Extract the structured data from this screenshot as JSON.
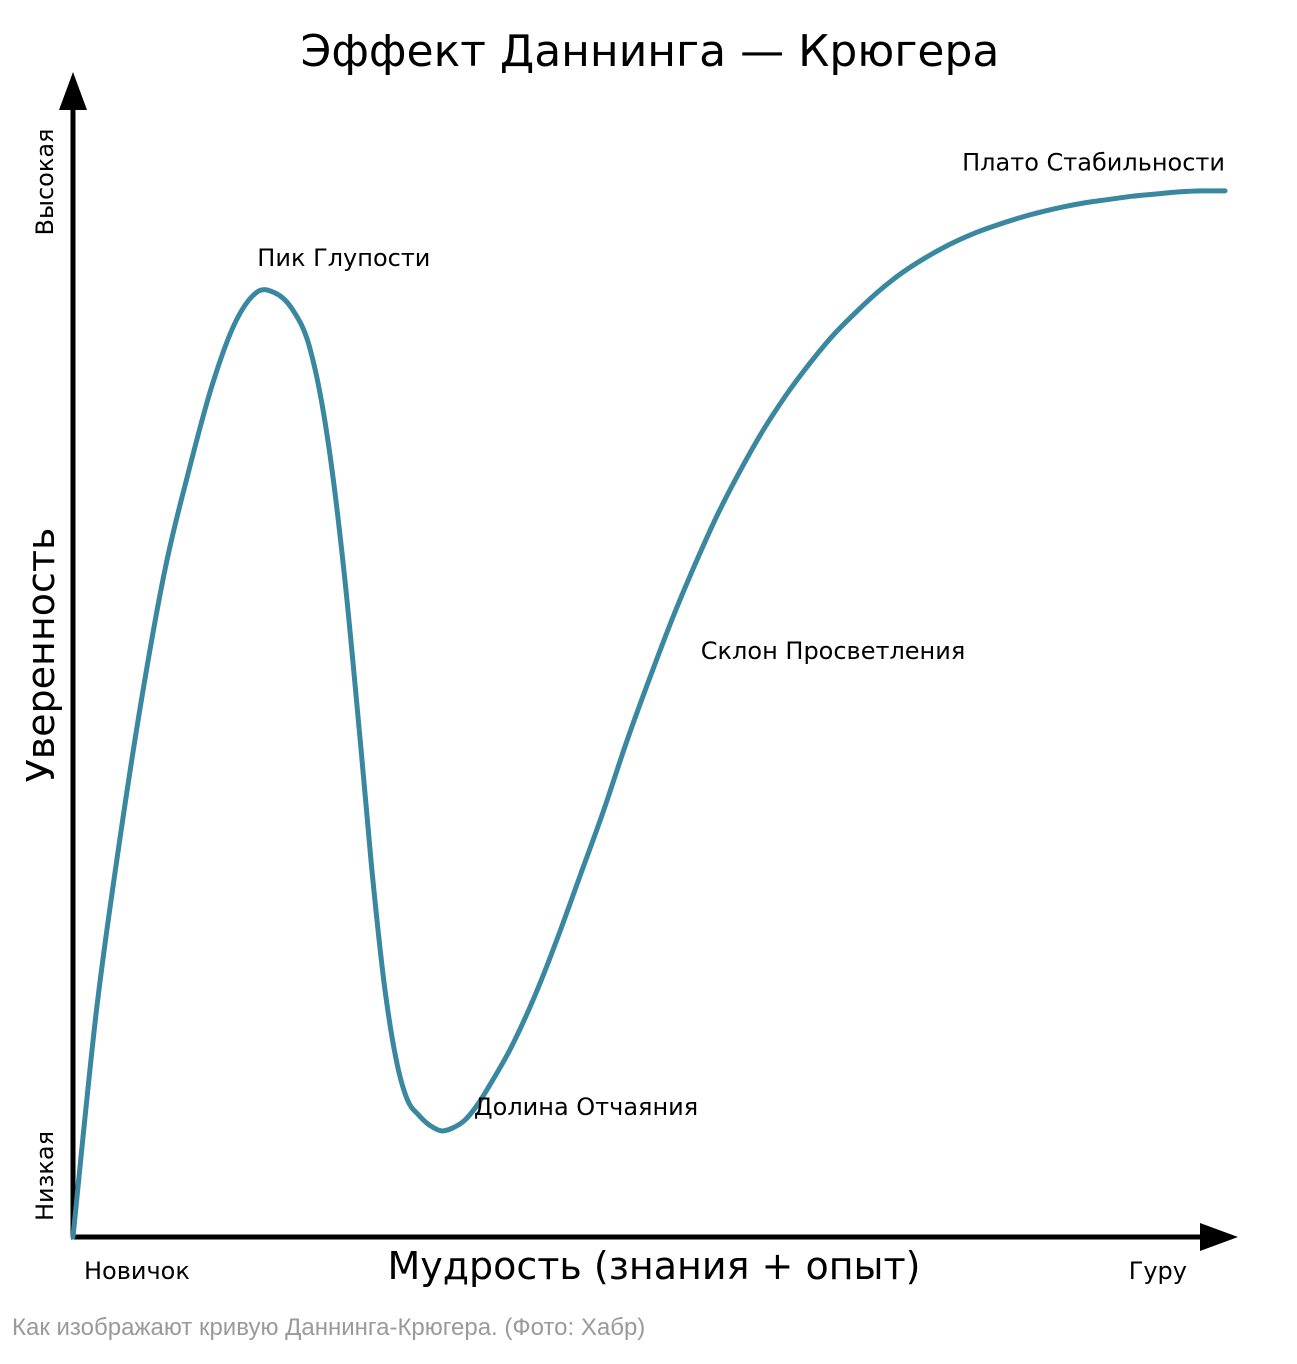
{
  "chart_data": {
    "type": "line",
    "title": "Эффект Даннинга — Крюгера",
    "xlabel": "Мудрость (знания + опыт)",
    "ylabel": "Уверенность",
    "x_tick_labels": {
      "start": "Новичок",
      "end": "Гуру"
    },
    "y_tick_labels": {
      "low": "Низкая",
      "high": "Высокая"
    },
    "xlim": [
      0,
      100
    ],
    "ylim": [
      0,
      100
    ],
    "grid": false,
    "series": [
      {
        "color": "#3a87a0",
        "x": [
          0,
          2,
          4,
          6,
          8,
          10,
          12,
          14,
          15.9,
          17.5,
          19,
          20.5,
          22,
          23.5,
          25,
          26,
          27,
          28,
          29,
          30,
          31,
          32,
          33,
          34,
          35,
          36,
          38,
          40,
          42,
          44,
          46,
          48,
          50,
          52,
          54,
          56,
          58,
          60,
          62,
          64,
          66,
          68,
          70,
          72,
          74,
          76,
          78,
          80,
          82,
          84,
          86,
          88,
          90,
          92,
          94,
          96,
          98,
          100
        ],
        "y": [
          0,
          21,
          37,
          51,
          63,
          72,
          80,
          86,
          89,
          89,
          87.5,
          84,
          76,
          63,
          46,
          34,
          24,
          17,
          13,
          11.5,
          10.5,
          10,
          10.3,
          11,
          12.3,
          14,
          17.8,
          22.5,
          28,
          34,
          40,
          46.5,
          52.5,
          58.2,
          63.4,
          68.2,
          72.4,
          76.2,
          79.5,
          82.4,
          85,
          87.2,
          89.2,
          90.9,
          92.3,
          93.5,
          94.5,
          95.3,
          96,
          96.6,
          97.1,
          97.5,
          97.8,
          98.1,
          98.3,
          98.5,
          98.6,
          98.6
        ]
      }
    ],
    "annotations": [
      {
        "text": "Пик Глупости",
        "x": 16,
        "y": 91.5
      },
      {
        "text": "Долина Отчаяния",
        "x": 34.8,
        "y": 11.5
      },
      {
        "text": "Склон Просветления",
        "x": 54.5,
        "y": 54.5
      },
      {
        "text": "Плато Стабильности",
        "x": 100,
        "y": 100.5
      }
    ]
  },
  "caption": "Как изображают кривую Даннинга-Крюгера. (Фото: Хабр)"
}
